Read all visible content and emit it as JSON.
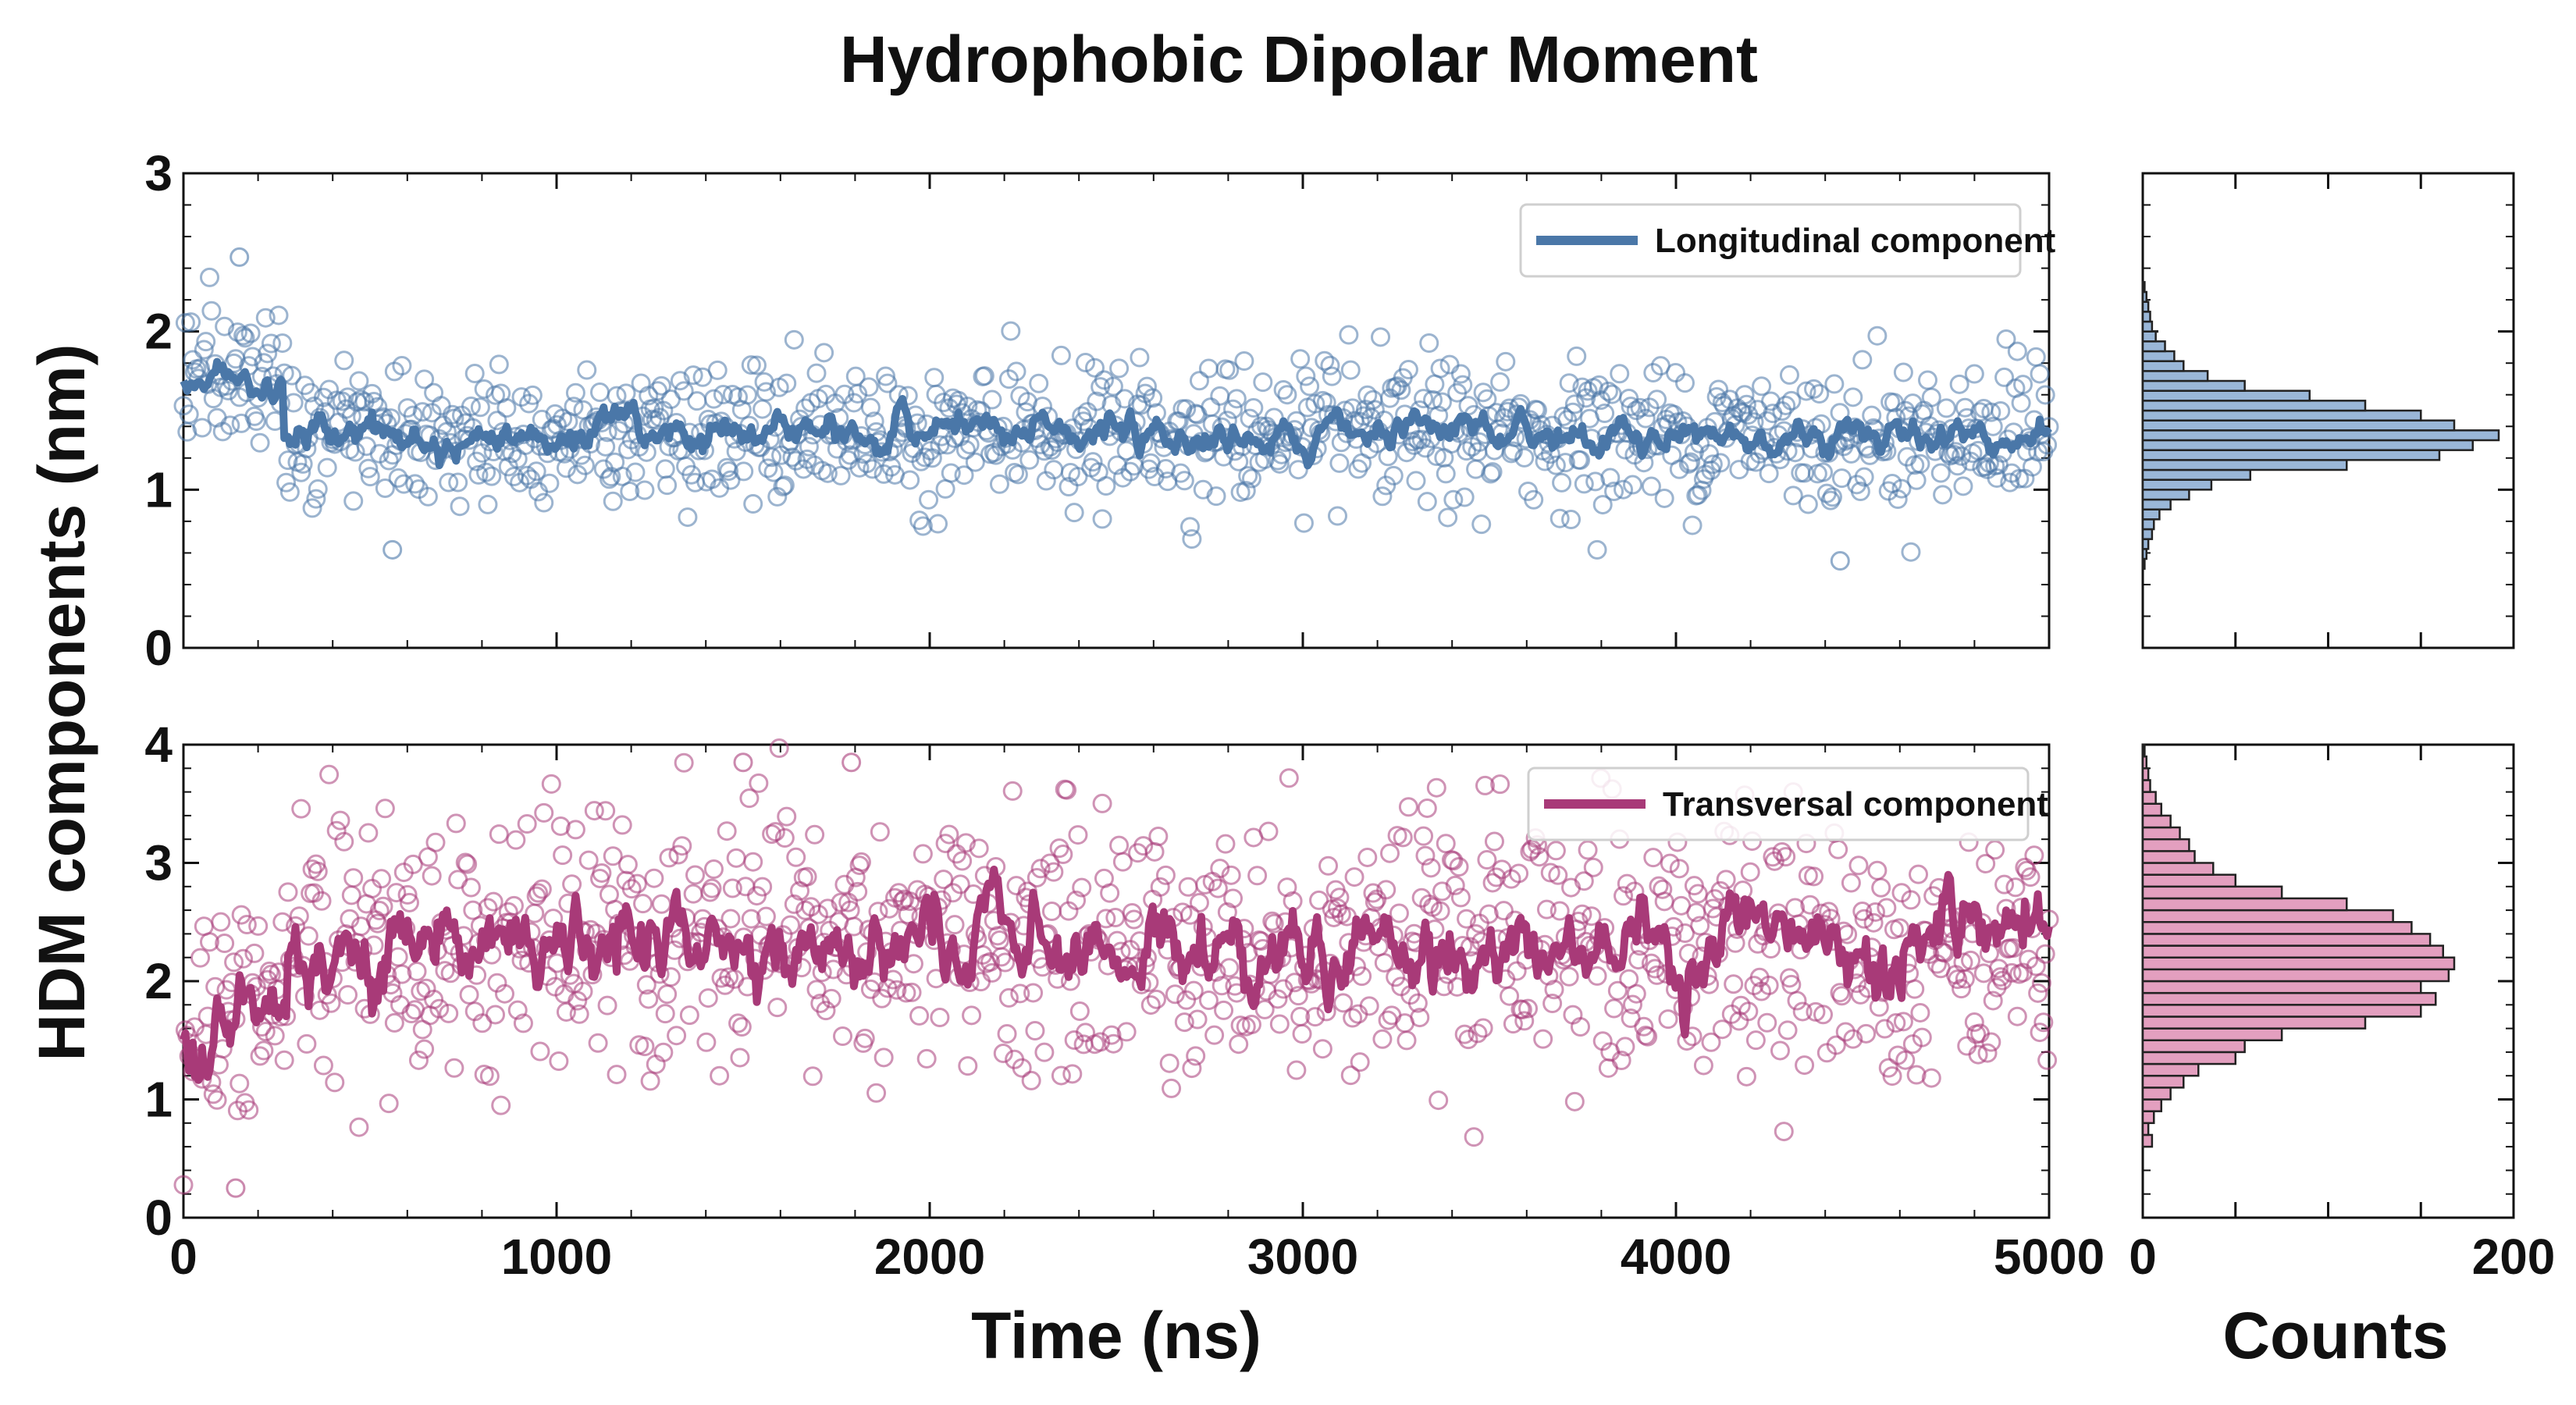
{
  "colors": {
    "longitudinal": "#4a77a8",
    "longitudinal_hist": "#9ab7d8",
    "transversal": "#a83a78",
    "transversal_hist": "#e39fbf"
  },
  "chart_data": [
    {
      "name": "longitudinal-time-series",
      "type": "scatter",
      "title": "Hydrophobic Dipolar Moment",
      "xlabel": "Time (ns)",
      "ylabel": "HDM components (nm)",
      "xlim": [
        0,
        5000
      ],
      "ylim": [
        0,
        3
      ],
      "xticks": [
        0,
        1000,
        2000,
        3000,
        4000,
        5000
      ],
      "yticks": [
        0,
        1,
        2,
        3
      ],
      "legend": "top-right",
      "series": [
        {
          "name": "Longitudinal component",
          "style": "line + open circles",
          "initial_mean": 1.7,
          "initial_until_ns": 270,
          "plateau_mean": 1.35,
          "scatter_spread_sd": 0.22,
          "point_count": 1000,
          "notable_points": [
            {
              "x": 150,
              "y": 2.47
            },
            {
              "x": 4440,
              "y": 0.55
            },
            {
              "x": 560,
              "y": 0.62
            }
          ]
        }
      ]
    },
    {
      "name": "transversal-time-series",
      "type": "scatter",
      "xlim": [
        0,
        5000
      ],
      "ylim": [
        0,
        4
      ],
      "xticks": [
        0,
        1000,
        2000,
        3000,
        4000,
        5000
      ],
      "yticks": [
        0,
        1,
        2,
        3,
        4
      ],
      "legend": "top-right",
      "series": [
        {
          "name": "Transversal component",
          "style": "line + open circles",
          "initial_mean": 1.55,
          "initial_until_ns": 280,
          "plateau_mean": 2.3,
          "scatter_spread_sd": 0.55,
          "point_count": 1000,
          "notable_points": [
            {
              "x": 1500,
              "y": 3.85
            },
            {
              "x": 1790,
              "y": 3.85
            },
            {
              "x": 140,
              "y": 0.25
            }
          ]
        }
      ]
    },
    {
      "name": "longitudinal-histogram",
      "type": "bar",
      "orientation": "horizontal",
      "xlabel": "",
      "xlim": [
        0,
        200
      ],
      "ylim": [
        0,
        3
      ],
      "bin_width": 0.0625,
      "bin_starts": [
        0.5,
        0.5625,
        0.625,
        0.6875,
        0.75,
        0.8125,
        0.875,
        0.9375,
        1.0,
        1.0625,
        1.125,
        1.1875,
        1.25,
        1.3125,
        1.375,
        1.4375,
        1.5,
        1.5625,
        1.625,
        1.6875,
        1.75,
        1.8125,
        1.875,
        1.9375,
        2.0,
        2.0625,
        2.125,
        2.1875,
        2.25
      ],
      "counts": [
        1,
        2,
        3,
        5,
        6,
        9,
        15,
        25,
        37,
        58,
        110,
        160,
        178,
        192,
        168,
        150,
        120,
        90,
        55,
        35,
        22,
        17,
        12,
        7,
        5,
        4,
        3,
        2,
        1
      ]
    },
    {
      "name": "transversal-histogram",
      "type": "bar",
      "orientation": "horizontal",
      "xlabel": "Counts",
      "xlim": [
        0,
        200
      ],
      "ylim": [
        0,
        4
      ],
      "xticks": [
        0,
        200
      ],
      "bin_width": 0.1,
      "bin_starts": [
        0.6,
        0.7,
        0.8,
        0.9,
        1.0,
        1.1,
        1.2,
        1.3,
        1.4,
        1.5,
        1.6,
        1.7,
        1.8,
        1.9,
        2.0,
        2.1,
        2.2,
        2.3,
        2.4,
        2.5,
        2.6,
        2.7,
        2.8,
        2.9,
        3.0,
        3.1,
        3.2,
        3.3,
        3.4,
        3.5,
        3.6,
        3.7,
        3.8,
        3.9
      ],
      "counts": [
        5,
        3,
        6,
        10,
        15,
        22,
        30,
        50,
        55,
        75,
        120,
        150,
        158,
        150,
        165,
        168,
        162,
        155,
        145,
        135,
        110,
        75,
        50,
        38,
        28,
        25,
        20,
        15,
        10,
        7,
        4,
        3,
        2,
        1
      ]
    }
  ]
}
